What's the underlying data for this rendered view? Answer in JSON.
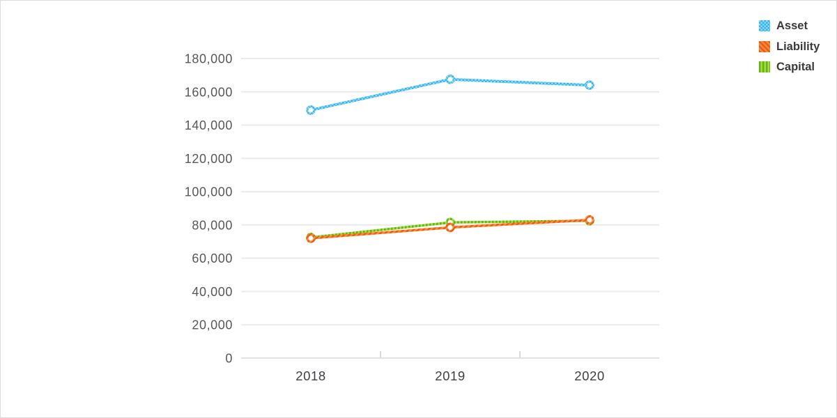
{
  "legend": {
    "position": "top-right",
    "items": [
      "Asset",
      "Liability",
      "Capital"
    ]
  },
  "chart_data": {
    "type": "line",
    "title": "",
    "xlabel": "",
    "ylabel": "",
    "categories": [
      "2018",
      "2019",
      "2020"
    ],
    "series": [
      {
        "name": "Asset",
        "values": [
          149000,
          167500,
          164000
        ],
        "color": "#45BCF0",
        "pattern": {
          "type": "checker",
          "colors": [
            "#2FB3EC",
            "#8FD9F7"
          ]
        }
      },
      {
        "name": "Liability",
        "values": [
          72000,
          78500,
          83000
        ],
        "color": "#F97425",
        "pattern": {
          "type": "diagonal",
          "colors": [
            "#F15A0A",
            "#FB8B3E"
          ]
        }
      },
      {
        "name": "Capital",
        "values": [
          72500,
          81500,
          82500
        ],
        "color": "#7CC41F",
        "pattern": {
          "type": "vertical",
          "colors": [
            "#5FB60D",
            "#A6DA43"
          ]
        }
      }
    ],
    "ylim": [
      0,
      180000
    ],
    "ytick_step": 20000,
    "y_tick_labels": [
      "0",
      "20,000",
      "40,000",
      "60,000",
      "80,000",
      "100,000",
      "120,000",
      "140,000",
      "160,000",
      "180,000"
    ],
    "grid": true,
    "gridline_color": "#ebebeb",
    "axis_line_color": "#e2e2e2",
    "legend_position": "top-right"
  }
}
